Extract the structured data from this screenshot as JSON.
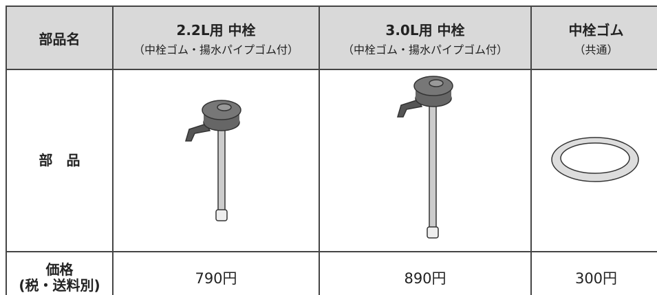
{
  "table": {
    "header": [
      {
        "title": "部品名"
      },
      {
        "title": "2.2L用 中栓",
        "note": "（中栓ゴム・揚水パイプゴム付）"
      },
      {
        "title": "3.0L用 中栓",
        "note": "（中栓ゴム・揚水パイプゴム付）"
      },
      {
        "title": "中栓ゴム",
        "note": "（共通）"
      }
    ],
    "rows": [
      {
        "label": [
          "部　品"
        ]
      },
      {
        "label": [
          "価格",
          "(税・送料別)"
        ],
        "cells": [
          "790円",
          "890円",
          "300円"
        ]
      }
    ]
  }
}
